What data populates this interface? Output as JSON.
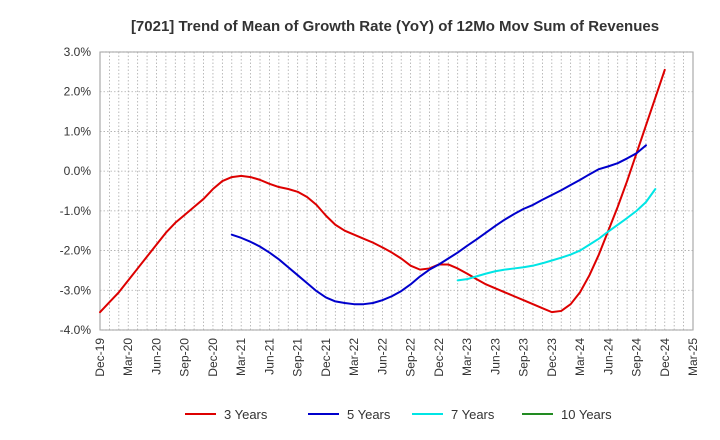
{
  "chart_data": {
    "type": "line",
    "title": "[7021]  Trend of Mean of Growth Rate (YoY) of 12Mo Mov Sum of Revenues",
    "xlabel": "",
    "ylabel": "",
    "ylim": [
      -4.0,
      3.0
    ],
    "yticks": [
      "3.0%",
      "2.0%",
      "1.0%",
      "0.0%",
      "-1.0%",
      "-2.0%",
      "-3.0%",
      "-4.0%"
    ],
    "ytick_values": [
      3.0,
      2.0,
      1.0,
      0.0,
      -1.0,
      -2.0,
      -3.0,
      -4.0
    ],
    "xticks": [
      "Dec-19",
      "Mar-20",
      "Jun-20",
      "Sep-20",
      "Dec-20",
      "Mar-21",
      "Jun-21",
      "Sep-21",
      "Dec-21",
      "Mar-22",
      "Jun-22",
      "Sep-22",
      "Dec-22",
      "Mar-23",
      "Jun-23",
      "Sep-23",
      "Dec-23",
      "Mar-24",
      "Jun-24",
      "Sep-24",
      "Dec-24",
      "Mar-25"
    ],
    "x_months_total": 63,
    "grid": true,
    "legend_position": "bottom",
    "series": [
      {
        "name": "3 Years",
        "color": "#dd0000",
        "start_month": 0,
        "values": [
          -3.55,
          -3.3,
          -3.05,
          -2.75,
          -2.45,
          -2.15,
          -1.85,
          -1.55,
          -1.3,
          -1.1,
          -0.9,
          -0.7,
          -0.45,
          -0.25,
          -0.15,
          -0.12,
          -0.15,
          -0.22,
          -0.32,
          -0.4,
          -0.45,
          -0.52,
          -0.65,
          -0.85,
          -1.12,
          -1.35,
          -1.5,
          -1.6,
          -1.7,
          -1.8,
          -1.92,
          -2.05,
          -2.2,
          -2.38,
          -2.48,
          -2.45,
          -2.35,
          -2.35,
          -2.45,
          -2.58,
          -2.72,
          -2.85,
          -2.95,
          -3.05,
          -3.15,
          -3.25,
          -3.35,
          -3.45,
          -3.55,
          -3.52,
          -3.35,
          -3.05,
          -2.62,
          -2.1,
          -1.5,
          -0.9,
          -0.25,
          0.45,
          1.15,
          1.85,
          2.55
        ]
      },
      {
        "name": "5 Years",
        "color": "#0000cc",
        "start_month": 14,
        "values": [
          -1.6,
          -1.68,
          -1.78,
          -1.9,
          -2.05,
          -2.22,
          -2.42,
          -2.62,
          -2.82,
          -3.02,
          -3.18,
          -3.28,
          -3.32,
          -3.35,
          -3.35,
          -3.32,
          -3.25,
          -3.15,
          -3.02,
          -2.85,
          -2.65,
          -2.48,
          -2.35,
          -2.2,
          -2.05,
          -1.88,
          -1.72,
          -1.55,
          -1.38,
          -1.22,
          -1.08,
          -0.95,
          -0.85,
          -0.72,
          -0.6,
          -0.48,
          -0.35,
          -0.22,
          -0.08,
          0.05,
          0.12,
          0.2,
          0.32,
          0.45,
          0.65
        ]
      },
      {
        "name": "7 Years",
        "color": "#00e5e5",
        "start_month": 38,
        "values": [
          -2.75,
          -2.72,
          -2.65,
          -2.58,
          -2.52,
          -2.48,
          -2.45,
          -2.42,
          -2.38,
          -2.32,
          -2.25,
          -2.18,
          -2.1,
          -2.0,
          -1.85,
          -1.7,
          -1.52,
          -1.35,
          -1.18,
          -1.0,
          -0.78,
          -0.45
        ]
      },
      {
        "name": "10 Years",
        "color": "#228b22",
        "start_month": 60,
        "values": []
      }
    ]
  }
}
